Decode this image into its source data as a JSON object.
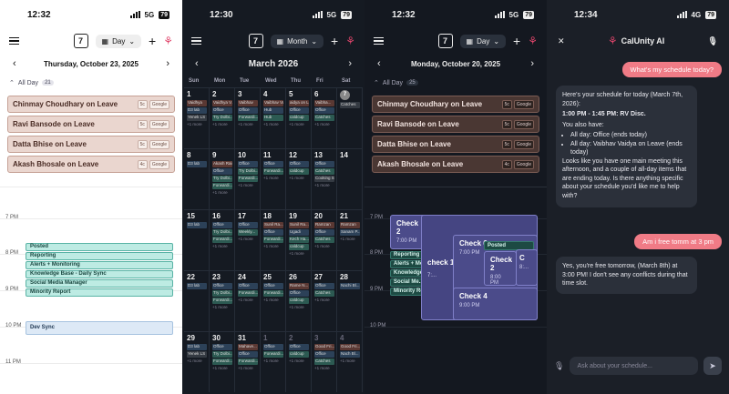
{
  "p1": {
    "time": "12:32",
    "net": "5G",
    "battery": "79",
    "view": "Day",
    "day_num": "7",
    "date": "Thursday, October 23, 2025",
    "allday_label": "All Day",
    "allday_count": "21",
    "leaves": [
      {
        "name": "Chinmay Choudhary on Leave",
        "tag1": "5c",
        "tag2": "Google"
      },
      {
        "name": "Ravi Bansode on Leave",
        "tag1": "5c",
        "tag2": "Google"
      },
      {
        "name": "Datta Bhise on Leave",
        "tag1": "5c",
        "tag2": "Google"
      },
      {
        "name": "Akash Bhosale on Leave",
        "tag1": "4c",
        "tag2": "Google"
      }
    ],
    "hours": [
      "7 PM",
      "8 PM",
      "9 PM",
      "10 PM",
      "11 PM"
    ],
    "events": [
      "Posted",
      "Reporting",
      "Alerts + Monitoring",
      "Knowledge Base - Daily Sync",
      "Social Media Manager",
      "Minority Report"
    ],
    "dev_sync": "Dev Sync"
  },
  "p2": {
    "time": "12:30",
    "net": "5G",
    "battery": "79",
    "view": "Month",
    "day_num": "7",
    "month": "March 2026",
    "dow": [
      "Sun",
      "Mon",
      "Tue",
      "Wed",
      "Thu",
      "Fri",
      "Sat"
    ],
    "more": "+1 more",
    "days": [
      {
        "n": "1",
        "dim": false,
        "ev": [
          [
            "r",
            "Vaidhya"
          ],
          [
            "b",
            "D3 lab"
          ],
          [
            "gr",
            "Yenek LS"
          ]
        ]
      },
      {
        "n": "2",
        "dim": false,
        "ev": [
          [
            "r",
            "Vaidhya V..."
          ],
          [
            "b",
            "Office"
          ],
          [
            "g",
            "Try Dolbi..."
          ]
        ]
      },
      {
        "n": "3",
        "dim": false,
        "ev": [
          [
            "r",
            "Vaibhav"
          ],
          [
            "b",
            "Office"
          ],
          [
            "g",
            "Forwardi..."
          ]
        ]
      },
      {
        "n": "4",
        "dim": false,
        "ev": [
          [
            "r",
            "Vaibhav Vaidya"
          ],
          [
            "b",
            "Hub"
          ],
          [
            "g",
            "Hub"
          ]
        ]
      },
      {
        "n": "5",
        "dim": false,
        "ev": [
          [
            "r",
            "aidya on Leave"
          ],
          [
            "b",
            "Office"
          ],
          [
            "g",
            "caldcup"
          ]
        ]
      },
      {
        "n": "6",
        "dim": false,
        "ev": [
          [
            "r",
            "Vaibha..."
          ],
          [
            "b",
            "Office"
          ],
          [
            "g",
            "Catches"
          ]
        ]
      },
      {
        "n": "7",
        "dim": false,
        "today": true,
        "ev": [
          [
            "gr",
            "Catches"
          ]
        ]
      },
      {
        "n": "8",
        "dim": false,
        "ev": [
          [
            "b",
            "D3 lab"
          ]
        ]
      },
      {
        "n": "9",
        "dim": false,
        "ev": [
          [
            "r",
            "Akash Raisar on..."
          ],
          [
            "b",
            "Office"
          ],
          [
            "g",
            "Try Dolbi..."
          ],
          [
            "g",
            "Forwardi..."
          ]
        ]
      },
      {
        "n": "10",
        "dim": false,
        "ev": [
          [
            "b",
            "Office"
          ],
          [
            "g",
            "Try Dolbi..."
          ],
          [
            "g",
            "Forwardi..."
          ]
        ]
      },
      {
        "n": "11",
        "dim": false,
        "ev": [
          [
            "b",
            "Office"
          ],
          [
            "g",
            "Forwardi..."
          ]
        ]
      },
      {
        "n": "12",
        "dim": false,
        "ev": [
          [
            "b",
            "Office"
          ],
          [
            "g",
            "caldcup"
          ]
        ]
      },
      {
        "n": "13",
        "dim": false,
        "ev": [
          [
            "b",
            "Office"
          ],
          [
            "g",
            "Catches"
          ],
          [
            "gr",
            "Cooking S..."
          ]
        ]
      },
      {
        "n": "14",
        "dim": false,
        "ev": []
      },
      {
        "n": "15",
        "dim": false,
        "ev": [
          [
            "b",
            "D3 lab"
          ]
        ]
      },
      {
        "n": "16",
        "dim": false,
        "ev": [
          [
            "b",
            "Office"
          ],
          [
            "g",
            "Try Dolbi..."
          ],
          [
            "g",
            "Forwardi..."
          ]
        ]
      },
      {
        "n": "17",
        "dim": false,
        "ev": [
          [
            "b",
            "Office"
          ],
          [
            "g",
            "Weekly..."
          ]
        ]
      },
      {
        "n": "18",
        "dim": false,
        "ev": [
          [
            "r",
            "Sunil Ra..."
          ],
          [
            "b",
            "Office"
          ],
          [
            "g",
            "Forwardi..."
          ]
        ]
      },
      {
        "n": "19",
        "dim": false,
        "ev": [
          [
            "r",
            "Sunil Ra..."
          ],
          [
            "b",
            "Ugadi"
          ],
          [
            "g",
            "Kech Ha..."
          ],
          [
            "g",
            "caldcup"
          ]
        ]
      },
      {
        "n": "20",
        "dim": false,
        "ev": [
          [
            "r",
            "Ramzan"
          ],
          [
            "b",
            "Office"
          ],
          [
            "g",
            "Catches"
          ]
        ]
      },
      {
        "n": "21",
        "dim": false,
        "ev": [
          [
            "r",
            "Ramzan"
          ],
          [
            "b",
            "Sanam P..."
          ]
        ]
      },
      {
        "n": "22",
        "dim": false,
        "ev": [
          [
            "b",
            "D3 lab"
          ]
        ]
      },
      {
        "n": "23",
        "dim": false,
        "ev": [
          [
            "b",
            "Office"
          ],
          [
            "g",
            "Try Dolbi..."
          ],
          [
            "g",
            "Forwardi..."
          ]
        ]
      },
      {
        "n": "24",
        "dim": false,
        "ev": [
          [
            "b",
            "Office"
          ],
          [
            "g",
            "Forwardi..."
          ]
        ]
      },
      {
        "n": "25",
        "dim": false,
        "ev": [
          [
            "b",
            "Office"
          ],
          [
            "g",
            "Forwardi..."
          ]
        ]
      },
      {
        "n": "26",
        "dim": false,
        "ev": [
          [
            "r",
            "Rame N..."
          ],
          [
            "b",
            "Office"
          ],
          [
            "g",
            "caldcup"
          ]
        ]
      },
      {
        "n": "27",
        "dim": false,
        "ev": [
          [
            "b",
            "Office"
          ],
          [
            "g",
            "Catches"
          ]
        ]
      },
      {
        "n": "28",
        "dim": false,
        "ev": [
          [
            "b",
            "Nachi Bl..."
          ]
        ]
      },
      {
        "n": "29",
        "dim": false,
        "ev": [
          [
            "b",
            "D3 lab"
          ],
          [
            "gr",
            "Yenek LS"
          ]
        ]
      },
      {
        "n": "30",
        "dim": false,
        "ev": [
          [
            "b",
            "Office"
          ],
          [
            "g",
            "Try Dolbi..."
          ],
          [
            "g",
            "Forwardi..."
          ]
        ]
      },
      {
        "n": "31",
        "dim": false,
        "ev": [
          [
            "r",
            "Mahave..."
          ],
          [
            "b",
            "Office"
          ],
          [
            "g",
            "Forwardi..."
          ]
        ]
      },
      {
        "n": "1",
        "dim": true,
        "ev": [
          [
            "b",
            "Office"
          ],
          [
            "g",
            "Forwardi..."
          ]
        ]
      },
      {
        "n": "2",
        "dim": true,
        "ev": [
          [
            "b",
            "Office"
          ],
          [
            "g",
            "caldcup"
          ]
        ]
      },
      {
        "n": "3",
        "dim": true,
        "ev": [
          [
            "r",
            "Good Fri..."
          ],
          [
            "b",
            "Office"
          ],
          [
            "g",
            "Catches"
          ]
        ]
      },
      {
        "n": "4",
        "dim": true,
        "ev": [
          [
            "r",
            "Good Fri..."
          ],
          [
            "b",
            "Nach Bl..."
          ]
        ]
      }
    ]
  },
  "p3": {
    "time": "12:32",
    "net": "5G",
    "battery": "79",
    "view": "Day",
    "day_num": "7",
    "date": "Monday, October 20, 2025",
    "allday_label": "All Day",
    "allday_count": "25",
    "leaves": [
      {
        "name": "Chinmay Choudhary on Leave",
        "tag1": "5c",
        "tag2": "Google"
      },
      {
        "name": "Ravi Bansode on Leave",
        "tag1": "5c",
        "tag2": "Google"
      },
      {
        "name": "Datta Bhise on Leave",
        "tag1": "5c",
        "tag2": "Google"
      },
      {
        "name": "Akash Bhosale on Leave",
        "tag1": "4c",
        "tag2": "Google"
      }
    ],
    "hours": [
      "7 PM",
      "8 PM",
      "9 PM",
      "10 PM"
    ],
    "checks": [
      {
        "title": "Check 2",
        "time": "7:00 PM"
      },
      {
        "title": "check 1",
        "time": "7:..."
      },
      {
        "title": "Check 6",
        "time": "7:00 PM"
      },
      {
        "title": "Check 2",
        "time": "8:00 PM"
      },
      {
        "title": "Check 4",
        "time": "9:00 PM"
      },
      {
        "title": "C",
        "time": "8:..."
      }
    ],
    "events": [
      "Posted",
      "Reporting",
      "Alerts + Monitoring",
      "Knowledge",
      "Social Me...",
      "Minority Report"
    ]
  },
  "p4": {
    "time": "12:34",
    "net": "4G",
    "battery": "79",
    "title": "CalUnity AI",
    "msg1": "What's my schedule today?",
    "ai1_intro": "Here's your schedule for today (March 7th, 2026):",
    "ai1_event": "1:00 PM - 1:45 PM: RV Disc.",
    "ai1_also": "You also have:",
    "ai1_items": [
      "All day: Office (ends today)",
      "All day: Vaibhav Vaidya on Leave (ends today)"
    ],
    "ai1_outro": "Looks like you have one main meeting this afternoon, and a couple of all-day items that are ending today. Is there anything specific about your schedule you'd like me to help with?",
    "msg2": "Am i free tomm at 3 pm",
    "ai2": "Yes, you're free tomorrow, (March 8th) at 3:00 PM! I don't see any conflicts during that time slot.",
    "placeholder": "Ask about your schedule..."
  }
}
